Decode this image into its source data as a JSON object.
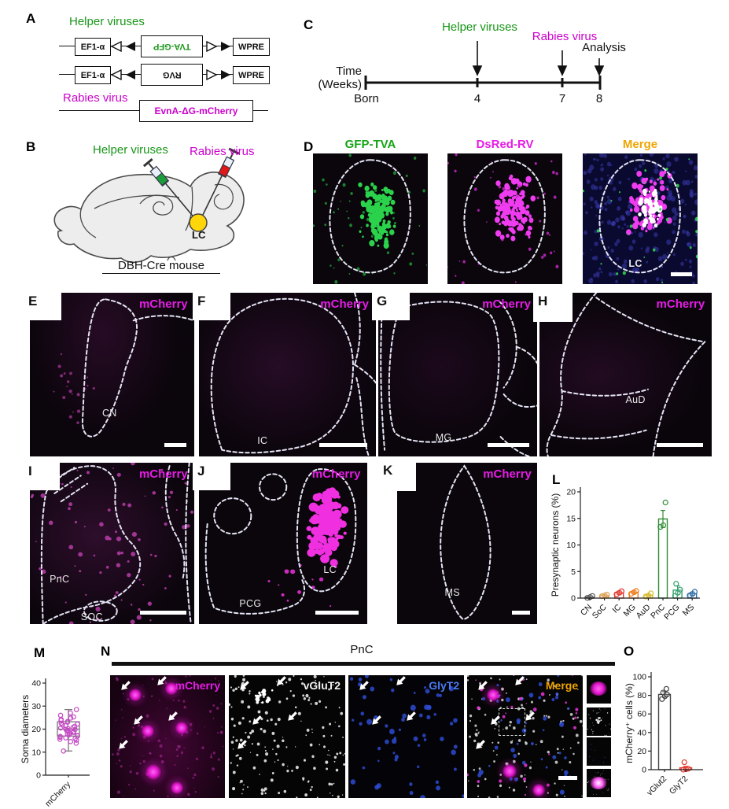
{
  "panels": {
    "A": {
      "label": "A",
      "title": "Helper viruses",
      "construct1": {
        "promoter": "EF1-α",
        "gene": "TVA-GFP",
        "element": "WPRE"
      },
      "construct2": {
        "promoter": "EF1-α",
        "gene": "RVG",
        "element": "WPRE"
      },
      "rabies_label": "Rabies virus",
      "rabies_gene": "EvnA-ΔG-mCherry"
    },
    "B": {
      "label": "B",
      "helper": "Helper viruses",
      "rabies": "Rabies virus",
      "lc": "LC",
      "mouse": "DBH-Cre mouse"
    },
    "C": {
      "label": "C",
      "time1": "Time",
      "time2": "(Weeks)",
      "event1": "Helper viruses",
      "event2": "Rabies virus",
      "event3": "Analysis",
      "tick0": "Born",
      "tick1": "4",
      "tick2": "7",
      "tick3": "8"
    },
    "D": {
      "label": "D",
      "ch1": "GFP-TVA",
      "ch2": "DsRed-RV",
      "ch3": "Merge",
      "region": "LC"
    },
    "E": {
      "label": "E",
      "marker": "mCherry",
      "region": "CN"
    },
    "F": {
      "label": "F",
      "marker": "mCherry",
      "region": "IC"
    },
    "G": {
      "label": "G",
      "marker": "mCherry",
      "region": "MG"
    },
    "H": {
      "label": "H",
      "marker": "mCherry",
      "region": "AuD"
    },
    "I": {
      "label": "I",
      "marker": "mCherry",
      "region1": "PnC",
      "region2": "SOC"
    },
    "J": {
      "label": "J",
      "marker": "mCherry",
      "region1": "PCG",
      "region2": "LC"
    },
    "K": {
      "label": "K",
      "marker": "mCherry",
      "region": "MS"
    },
    "L": {
      "label": "L"
    },
    "M": {
      "label": "M"
    },
    "N": {
      "label": "N",
      "title": "PnC",
      "ch1": "mCherry",
      "ch2": "vGluT2",
      "ch3": "GlyT2",
      "ch4": "Merge"
    },
    "O": {
      "label": "O"
    }
  },
  "chart_data": [
    {
      "id": "L",
      "type": "bar",
      "title": "",
      "ylabel": "Presynaptic neurons (%)",
      "xlabel": "",
      "ylim": [
        0,
        20
      ],
      "yticks": [
        0,
        5,
        10,
        15,
        20
      ],
      "grid": false,
      "categories": [
        "CN",
        "SoC",
        "IC",
        "MG",
        "AuD",
        "PnC",
        "PCG",
        "MS"
      ],
      "values": [
        0.2,
        0.5,
        1.0,
        1.1,
        0.55,
        14.9,
        1.5,
        0.8
      ],
      "errors": [
        0.1,
        0.15,
        0.3,
        0.25,
        0.2,
        1.6,
        0.8,
        0.3
      ],
      "points": [
        [
          0.05,
          0.2,
          0.4
        ],
        [
          0.35,
          0.5,
          0.65
        ],
        [
          0.7,
          1.0,
          1.3
        ],
        [
          0.8,
          1.1,
          1.35
        ],
        [
          0.3,
          0.5,
          0.9
        ],
        [
          13.4,
          13.7,
          18.0
        ],
        [
          0.4,
          1.0,
          1.6,
          2.7
        ],
        [
          0.5,
          0.8,
          1.2
        ]
      ],
      "colors": [
        "#555555",
        "#dd9f4e",
        "#e2382c",
        "#ef7b17",
        "#d9bb2b",
        "#2e8b33",
        "#35a06e",
        "#2e6ea6"
      ]
    },
    {
      "id": "M",
      "type": "box-scatter",
      "title": "",
      "ylabel": "Soma diameters",
      "xlabel": "",
      "ylim": [
        0,
        40
      ],
      "yticks": [
        0,
        10,
        20,
        30,
        40
      ],
      "grid": false,
      "categories": [
        "mCherry"
      ],
      "box": {
        "min": 10.5,
        "q1": 17,
        "median": 20,
        "q3": 23.2,
        "max": 28.5
      },
      "points": [
        10.5,
        13.9,
        14.6,
        15.2,
        15.6,
        15.9,
        16.2,
        16.5,
        16.8,
        17.0,
        17.2,
        17.5,
        17.8,
        18.0,
        18.3,
        18.6,
        19.0,
        19.2,
        19.5,
        19.8,
        20.0,
        20.2,
        20.5,
        20.8,
        21.2,
        21.5,
        21.8,
        22.2,
        22.6,
        23.0,
        23.3,
        23.8,
        24.2,
        24.8,
        25.3,
        26.0,
        27.0,
        28.5
      ],
      "color": "#c44bc4"
    },
    {
      "id": "O",
      "type": "bar",
      "title": "",
      "ylabel": "mCherry⁺ cells (%)",
      "xlabel": "",
      "ylim": [
        0,
        100
      ],
      "yticks": [
        0,
        20,
        40,
        60,
        80,
        100
      ],
      "grid": false,
      "categories": [
        "vGlut2",
        "GlyT2"
      ],
      "values": [
        81,
        2
      ],
      "errors": [
        3,
        1.5
      ],
      "points": [
        [
          76,
          79,
          81,
          83,
          87
        ],
        [
          0,
          0.5,
          1,
          8
        ]
      ],
      "colors": [
        "#444444",
        "#e2382c"
      ]
    }
  ]
}
